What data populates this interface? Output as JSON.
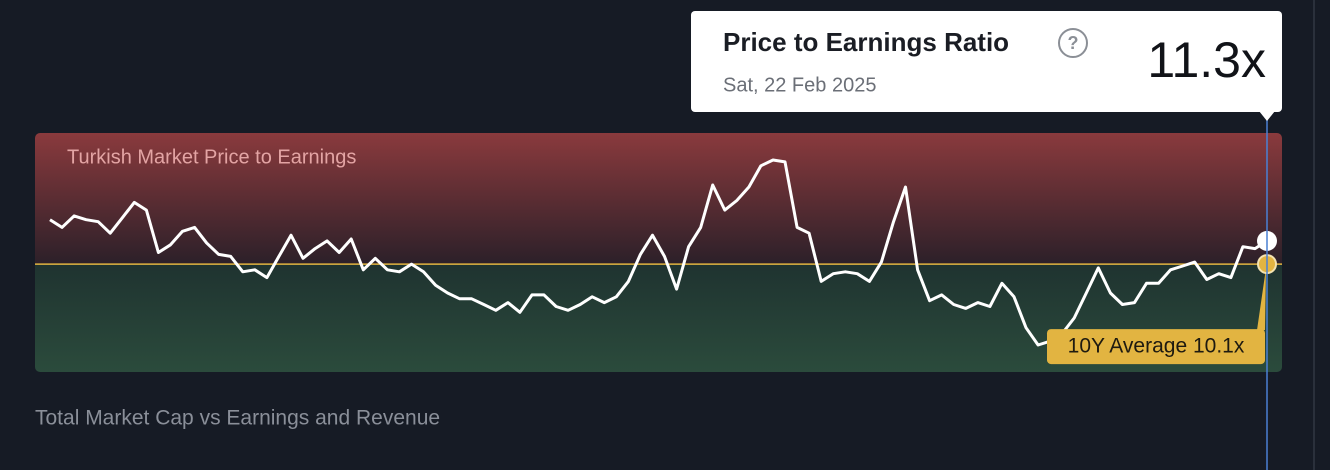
{
  "chart_data": {
    "type": "line",
    "title": "Turkish Market Price to Earnings",
    "color": "#ffffff",
    "values": [
      12.4,
      12.0,
      12.6,
      12.4,
      12.3,
      11.7,
      12.5,
      13.3,
      12.9,
      10.7,
      11.1,
      11.8,
      12.0,
      11.2,
      10.6,
      10.5,
      9.7,
      9.8,
      9.4,
      10.5,
      11.6,
      10.4,
      10.9,
      11.3,
      10.7,
      11.4,
      9.8,
      10.4,
      9.8,
      9.7,
      10.1,
      9.7,
      9.0,
      8.6,
      8.3,
      8.3,
      8.0,
      7.7,
      8.1,
      7.6,
      8.5,
      8.5,
      7.9,
      7.7,
      8.0,
      8.4,
      8.1,
      8.4,
      9.2,
      10.6,
      11.6,
      10.5,
      8.8,
      11.0,
      12.0,
      14.2,
      12.9,
      13.4,
      14.1,
      15.2,
      15.5,
      15.4,
      12.0,
      11.7,
      9.2,
      9.6,
      9.7,
      9.6,
      9.2,
      10.2,
      12.3,
      14.1,
      9.8,
      8.2,
      8.5,
      8.0,
      7.8,
      8.1,
      7.9,
      9.1,
      8.4,
      6.8,
      5.9,
      6.1,
      6.5,
      7.3,
      8.6,
      9.9,
      8.6,
      8.0,
      8.1,
      9.1,
      9.1,
      9.8,
      10.0,
      10.2,
      9.3,
      9.6,
      9.4,
      11.0,
      10.9,
      11.3
    ],
    "ylim": [
      4.5,
      16.9
    ],
    "average": {
      "value": 10.1,
      "label": "10Y Average 10.1x",
      "color": "#e2b441"
    },
    "tooltip": {
      "title": "Price to Earnings Ratio",
      "help_icon": "?",
      "date": "Sat, 22 Feb 2025",
      "current": {
        "value": 11.3,
        "label": "11.3x"
      }
    }
  },
  "next_section_title": "Total Market Cap vs Earnings and Revenue"
}
